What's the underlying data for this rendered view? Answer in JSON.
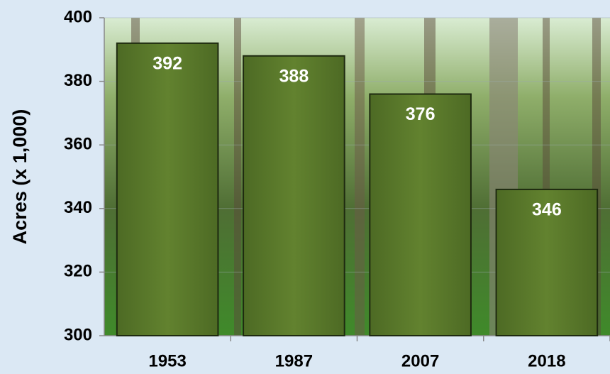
{
  "chart_data": {
    "type": "bar",
    "categories": [
      "1953",
      "1987",
      "2007",
      "2018"
    ],
    "values": [
      392,
      388,
      376,
      346
    ],
    "color": "#5b7a2c",
    "y_label": "Acres (x 1,000)",
    "ylim": [
      300,
      400
    ],
    "yticks": [
      300,
      320,
      340,
      360,
      380,
      400
    ],
    "grid": true
  }
}
